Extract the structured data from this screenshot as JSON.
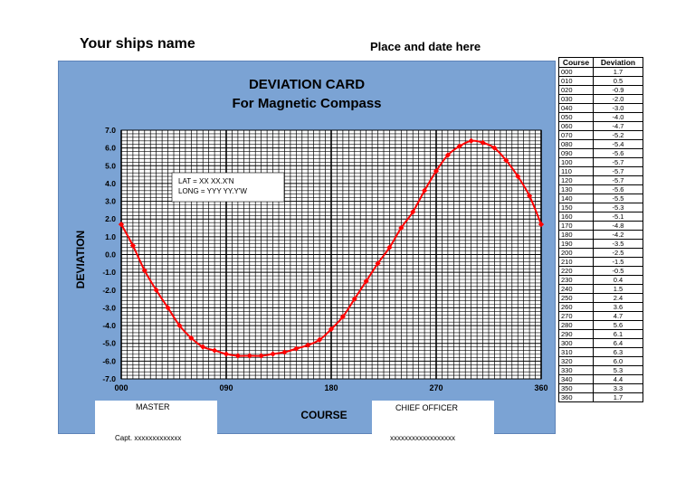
{
  "header": {
    "ship_name": "Your ships name",
    "place_date": "Place and date here"
  },
  "card": {
    "title": "DEVIATION CARD",
    "subtitle": "For Magnetic Compass",
    "panel_color": "#7ba3d4",
    "line_color": "#ff0000"
  },
  "position_box": {
    "lat": "LAT   =  XX  XX.X'N",
    "long": "LONG = YYY  YY.Y'W"
  },
  "signatures": {
    "master_label": "MASTER",
    "master_value": "Capt. xxxxxxxxxxxxx",
    "chief_label": "CHIEF OFFICER",
    "chief_value": "xxxxxxxxxxxxxxxxxx"
  },
  "chart_data": {
    "type": "line",
    "xlabel": "COURSE",
    "ylabel": "DEVIATION",
    "xlim": [
      0,
      360
    ],
    "ylim": [
      -7,
      7
    ],
    "x_ticks": [
      "000",
      "090",
      "180",
      "270",
      "360"
    ],
    "y_ticks": [
      "7.0",
      "6.0",
      "5.0",
      "4.0",
      "3.0",
      "2.0",
      "1.0",
      "0.0",
      "-1.0",
      "-2.0",
      "-3.0",
      "-4.0",
      "-5.0",
      "-6.0",
      "-7.0"
    ],
    "grid": true,
    "x": [
      0,
      10,
      20,
      30,
      40,
      50,
      60,
      70,
      80,
      90,
      100,
      110,
      120,
      130,
      140,
      150,
      160,
      170,
      180,
      190,
      200,
      210,
      220,
      230,
      240,
      250,
      260,
      270,
      280,
      290,
      300,
      310,
      320,
      330,
      340,
      350,
      360
    ],
    "values": [
      1.7,
      0.5,
      -0.9,
      -2.0,
      -3.0,
      -4.0,
      -4.7,
      -5.2,
      -5.4,
      -5.6,
      -5.7,
      -5.7,
      -5.7,
      -5.6,
      -5.5,
      -5.3,
      -5.1,
      -4.8,
      -4.2,
      -3.5,
      -2.5,
      -1.5,
      -0.5,
      0.4,
      1.5,
      2.4,
      3.6,
      4.7,
      5.6,
      6.1,
      6.4,
      6.3,
      6.0,
      5.3,
      4.4,
      3.3,
      1.7
    ]
  },
  "table": {
    "headers": [
      "Course",
      "Deviation"
    ],
    "rows": [
      [
        "000",
        "1.7"
      ],
      [
        "010",
        "0.5"
      ],
      [
        "020",
        "-0.9"
      ],
      [
        "030",
        "-2.0"
      ],
      [
        "040",
        "-3.0"
      ],
      [
        "050",
        "-4.0"
      ],
      [
        "060",
        "-4.7"
      ],
      [
        "070",
        "-5.2"
      ],
      [
        "080",
        "-5.4"
      ],
      [
        "090",
        "-5.6"
      ],
      [
        "100",
        "-5.7"
      ],
      [
        "110",
        "-5.7"
      ],
      [
        "120",
        "-5.7"
      ],
      [
        "130",
        "-5.6"
      ],
      [
        "140",
        "-5.5"
      ],
      [
        "150",
        "-5.3"
      ],
      [
        "160",
        "-5.1"
      ],
      [
        "170",
        "-4.8"
      ],
      [
        "180",
        "-4.2"
      ],
      [
        "190",
        "-3.5"
      ],
      [
        "200",
        "-2.5"
      ],
      [
        "210",
        "-1.5"
      ],
      [
        "220",
        "-0.5"
      ],
      [
        "230",
        "0.4"
      ],
      [
        "240",
        "1.5"
      ],
      [
        "250",
        "2.4"
      ],
      [
        "260",
        "3.6"
      ],
      [
        "270",
        "4.7"
      ],
      [
        "280",
        "5.6"
      ],
      [
        "290",
        "6.1"
      ],
      [
        "300",
        "6.4"
      ],
      [
        "310",
        "6.3"
      ],
      [
        "320",
        "6.0"
      ],
      [
        "330",
        "5.3"
      ],
      [
        "340",
        "4.4"
      ],
      [
        "350",
        "3.3"
      ],
      [
        "360",
        "1.7"
      ]
    ]
  }
}
